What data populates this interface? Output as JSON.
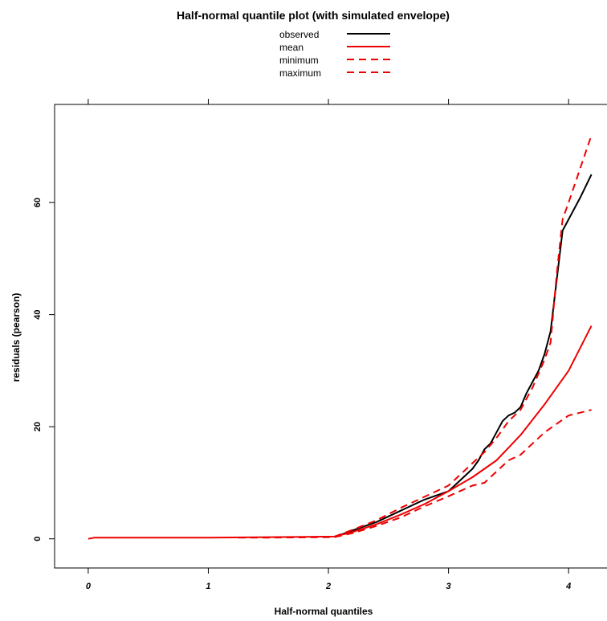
{
  "chart_data": {
    "type": "line",
    "title": "Half-normal quantile plot (with simulated envelope)",
    "xlabel": "Half-normal quantiles",
    "ylabel": "residuals (pearson)",
    "xlim": [
      -0.28,
      4.4
    ],
    "ylim": [
      -5.2,
      77.5
    ],
    "xticks": [
      0,
      1,
      2,
      3,
      4
    ],
    "yticks": [
      0,
      20,
      40,
      60
    ],
    "xtick_labels": [
      "0",
      "1",
      "2",
      "3",
      "4"
    ],
    "ytick_labels": [
      "0",
      "20",
      "40",
      "60"
    ],
    "legend_position": "top-center",
    "series": [
      {
        "name": "observed",
        "color": "#000000",
        "style": "solid",
        "x": [
          2.05,
          2.2,
          2.4,
          2.6,
          2.8,
          3.0,
          3.1,
          3.2,
          3.25,
          3.3,
          3.35,
          3.4,
          3.45,
          3.5,
          3.55,
          3.6,
          3.65,
          3.7,
          3.75,
          3.8,
          3.85,
          3.9,
          3.95,
          4.0,
          4.1,
          4.19
        ],
        "y": [
          0.3,
          1.5,
          3.0,
          5.0,
          7.0,
          8.5,
          10.5,
          12.5,
          14.0,
          16.0,
          17.0,
          19.0,
          21.0,
          22.0,
          22.5,
          23.5,
          26.0,
          28.0,
          30.0,
          33.0,
          37.0,
          46.0,
          55.0,
          57.0,
          61.0,
          65.0
        ]
      },
      {
        "name": "mean",
        "color": "#ee0000",
        "style": "solid",
        "x": [
          0.0,
          0.05,
          0.5,
          1.0,
          1.5,
          2.05,
          2.2,
          2.4,
          2.6,
          2.8,
          3.0,
          3.2,
          3.4,
          3.6,
          3.8,
          4.0,
          4.19
        ],
        "y": [
          0.0,
          0.2,
          0.2,
          0.2,
          0.3,
          0.4,
          1.2,
          2.6,
          4.3,
          6.2,
          8.5,
          11.0,
          14.0,
          18.5,
          24.0,
          30.0,
          38.0
        ]
      },
      {
        "name": "minimum",
        "color": "#ee0000",
        "style": "dashed",
        "x": [
          1.25,
          1.45,
          2.05,
          2.2,
          2.4,
          2.6,
          2.8,
          3.0,
          3.2,
          3.3,
          3.4,
          3.5,
          3.6,
          3.7,
          3.8,
          3.9,
          4.0,
          4.19
        ],
        "y": [
          0.2,
          0.2,
          0.3,
          1.0,
          2.3,
          3.8,
          5.8,
          7.6,
          9.5,
          10.0,
          12.0,
          14.0,
          15.0,
          17.0,
          19.0,
          20.5,
          22.0,
          23.0
        ]
      },
      {
        "name": "maximum",
        "color": "#ee0000",
        "style": "dashed",
        "x": [
          2.05,
          2.2,
          2.4,
          2.6,
          2.8,
          3.0,
          3.1,
          3.2,
          3.3,
          3.4,
          3.5,
          3.6,
          3.7,
          3.8,
          3.85,
          3.9,
          3.95,
          4.0,
          4.19
        ],
        "y": [
          0.4,
          1.6,
          3.3,
          5.5,
          7.5,
          9.5,
          11.5,
          13.5,
          15.5,
          18.0,
          21.0,
          23.0,
          27.0,
          32.0,
          35.0,
          47.0,
          57.0,
          60.0,
          72.0
        ]
      }
    ]
  }
}
